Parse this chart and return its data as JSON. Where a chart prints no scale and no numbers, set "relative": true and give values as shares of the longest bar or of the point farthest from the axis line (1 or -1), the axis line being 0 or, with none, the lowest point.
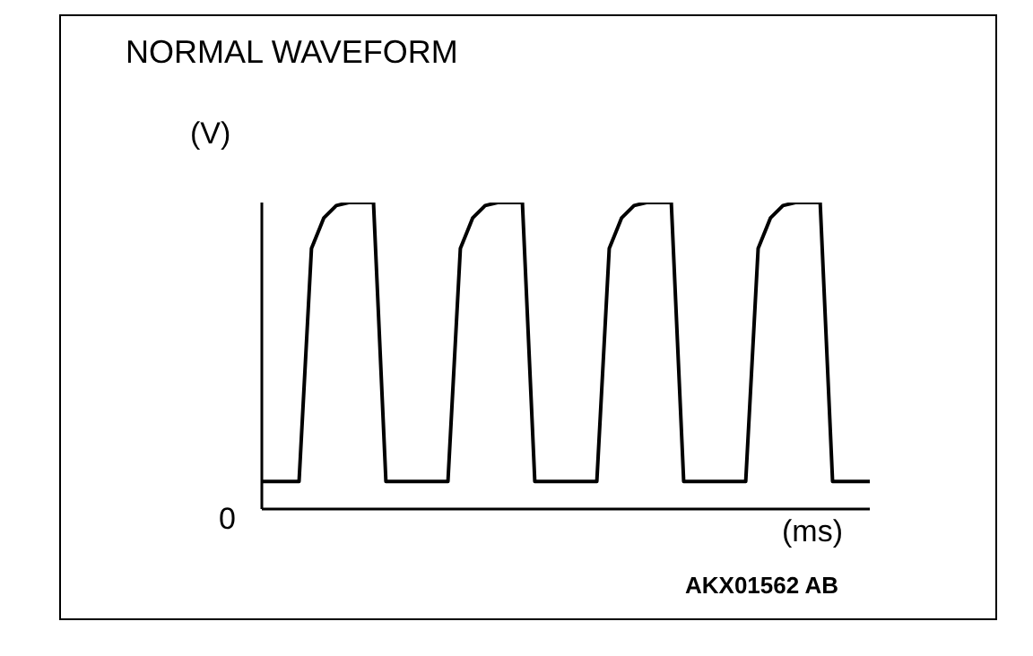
{
  "chart_data": {
    "type": "line",
    "title": "NORMAL WAVEFORM",
    "xlabel": "(ms)",
    "ylabel": "(V)",
    "relative": true,
    "color": "#000000",
    "grid": false,
    "legend": false,
    "marker": "none",
    "line_style": "solid",
    "annotations": [
      "0",
      "AKX01562 AB"
    ],
    "categories": [
      null,
      null,
      null,
      null,
      null,
      null,
      null,
      null,
      null,
      null,
      null,
      null,
      null,
      null,
      null,
      null,
      null,
      null,
      null,
      null,
      null,
      null,
      null,
      null,
      null,
      null,
      null,
      null,
      null,
      null,
      null,
      null,
      null,
      null,
      null,
      null,
      null,
      null,
      null,
      null,
      null,
      null,
      null,
      null,
      null,
      null,
      null,
      null,
      null,
      null
    ],
    "values": [
      0.09,
      0.09,
      0.09,
      0.09,
      0.85,
      0.95,
      0.99,
      1,
      1,
      1,
      0.09,
      0.09,
      0.09,
      0.09,
      0.09,
      0.09,
      0.85,
      0.95,
      0.99,
      1,
      1,
      1,
      0.09,
      0.09,
      0.09,
      0.09,
      0.09,
      0.09,
      0.85,
      0.95,
      0.99,
      1,
      1,
      1,
      0.09,
      0.09,
      0.09,
      0.09,
      0.09,
      0.09,
      0.85,
      0.95,
      0.99,
      1,
      1,
      1,
      0.09,
      0.09,
      0.09,
      0.09
    ]
  }
}
